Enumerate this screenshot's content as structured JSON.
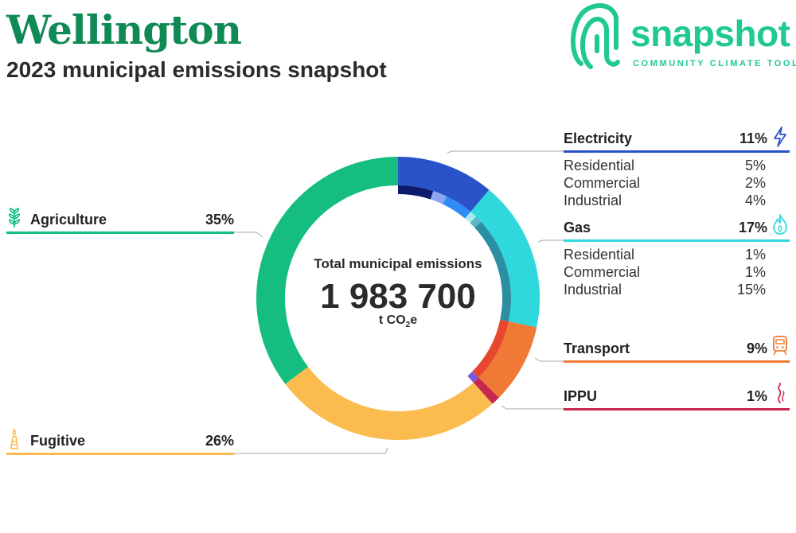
{
  "header": {
    "city": "Wellington",
    "subtitle": "2023 municipal emissions snapshot"
  },
  "logo": {
    "word": "snapshot",
    "tagline": "COMMUNITY CLIMATE TOOL"
  },
  "center": {
    "label": "Total municipal emissions",
    "value": "1 983 700",
    "unit_prefix": "t CO",
    "unit_sub": "2",
    "unit_suffix": "e"
  },
  "sectors": {
    "electricity": {
      "label": "Electricity",
      "pct": "11%",
      "color": "#2a52c9",
      "icon": "lightning-icon",
      "subs": [
        {
          "label": "Residential",
          "pct": "5%"
        },
        {
          "label": "Commercial",
          "pct": "2%"
        },
        {
          "label": "Industrial",
          "pct": "4%"
        }
      ]
    },
    "gas": {
      "label": "Gas",
      "pct": "17%",
      "color": "#2fd8dc",
      "icon": "flame-icon",
      "subs": [
        {
          "label": "Residential",
          "pct": "1%"
        },
        {
          "label": "Commercial",
          "pct": "1%"
        },
        {
          "label": "Industrial",
          "pct": "15%"
        }
      ]
    },
    "transport": {
      "label": "Transport",
      "pct": "9%",
      "color": "#f07a35",
      "icon": "train-icon"
    },
    "ippu": {
      "label": "IPPU",
      "pct": "1%",
      "color": "#c8284f",
      "icon": "smoke-icon"
    },
    "agriculture": {
      "label": "Agriculture",
      "pct": "35%",
      "color": "#15be7e",
      "icon": "wheat-icon"
    },
    "fugitive": {
      "label": "Fugitive",
      "pct": "26%",
      "color": "#fbbb4f",
      "icon": "gas-flare-icon"
    }
  },
  "chart_data": {
    "type": "pie",
    "variant": "donut",
    "total": 1983700,
    "unit": "t CO2e",
    "series": [
      {
        "name": "Electricity",
        "value": 11,
        "color": "#2a52c9",
        "subs": [
          {
            "name": "Residential",
            "value": 5,
            "color": "#0c1a6b"
          },
          {
            "name": "Commercial",
            "value": 2,
            "color": "#8aa6f0"
          },
          {
            "name": "Industrial",
            "value": 4,
            "color": "#2f8cf4"
          }
        ]
      },
      {
        "name": "Gas",
        "value": 17,
        "color": "#2fd8dc",
        "subs": [
          {
            "name": "Residential",
            "value": 1,
            "color": "#a8eef0"
          },
          {
            "name": "Commercial",
            "value": 1,
            "color": "#5fb7c4"
          },
          {
            "name": "Industrial",
            "value": 15,
            "color": "#2a8fa3"
          }
        ]
      },
      {
        "name": "Transport",
        "value": 9,
        "color": "#f07a35",
        "inner_color": "#e8472f"
      },
      {
        "name": "IPPU",
        "value": 1,
        "color": "#c8284f",
        "inner_color": "#7a5ad6"
      },
      {
        "name": "Fugitive",
        "value": 26,
        "color": "#fbbb4f"
      },
      {
        "name": "Agriculture",
        "value": 35,
        "color": "#15be7e"
      }
    ]
  }
}
